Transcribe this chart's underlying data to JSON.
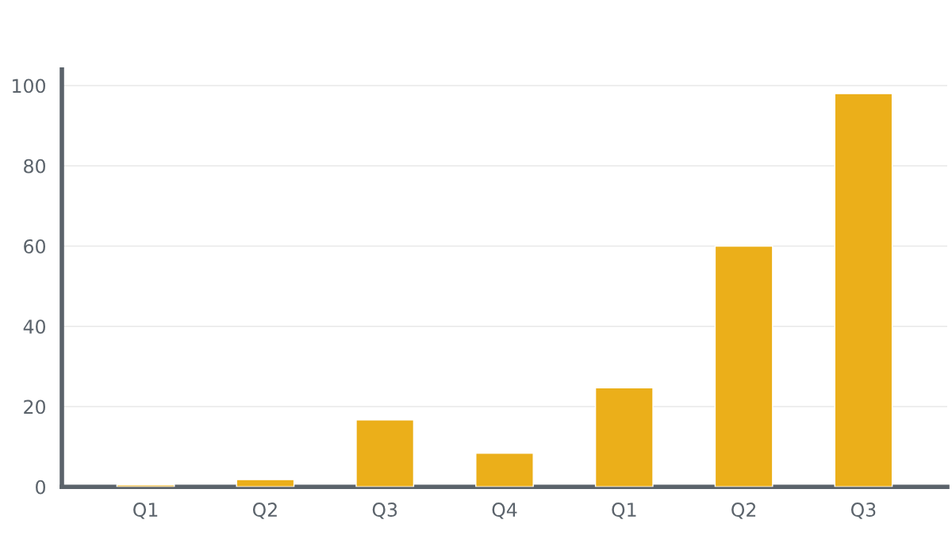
{
  "chart_data": {
    "type": "bar",
    "categories": [
      "Q1",
      "Q2",
      "Q3",
      "Q4",
      "Q1",
      "Q2",
      "Q3"
    ],
    "values": [
      0.5,
      1.8,
      16.7,
      8.4,
      24.7,
      60,
      98
    ],
    "color": "#ebaf1a",
    "ylim": [
      0,
      104
    ],
    "yticks": [
      0,
      20,
      40,
      60,
      80,
      100
    ],
    "grid": "y"
  }
}
